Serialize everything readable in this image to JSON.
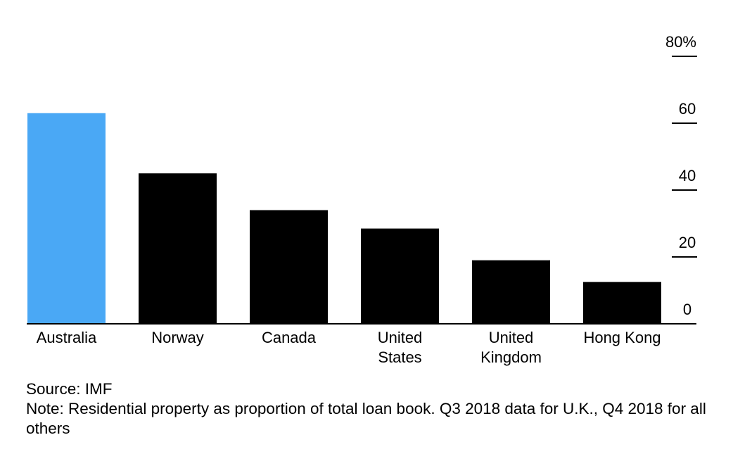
{
  "chart_data": {
    "type": "bar",
    "categories": [
      [
        "Australia"
      ],
      [
        "Norway"
      ],
      [
        "Canada"
      ],
      [
        "United",
        "States"
      ],
      [
        "United",
        "Kingdom"
      ],
      [
        "Hong Kong"
      ]
    ],
    "values": [
      63,
      45,
      34,
      28.5,
      19,
      12.5
    ],
    "highlight_index": 0,
    "ylim": [
      0,
      80
    ],
    "yticks": [
      0,
      20,
      40,
      60,
      80
    ],
    "ytick_labels": [
      "0",
      "20",
      "40",
      "60",
      "80%"
    ],
    "axis_position": "right",
    "colors": {
      "highlight": "#4aa8f5",
      "default": "#000000",
      "axis": "#000000"
    }
  },
  "footer": {
    "source": "Source: IMF",
    "note": "Note: Residential property as proportion of total loan book. Q3 2018 data for U.K., Q4 2018 for all others"
  }
}
